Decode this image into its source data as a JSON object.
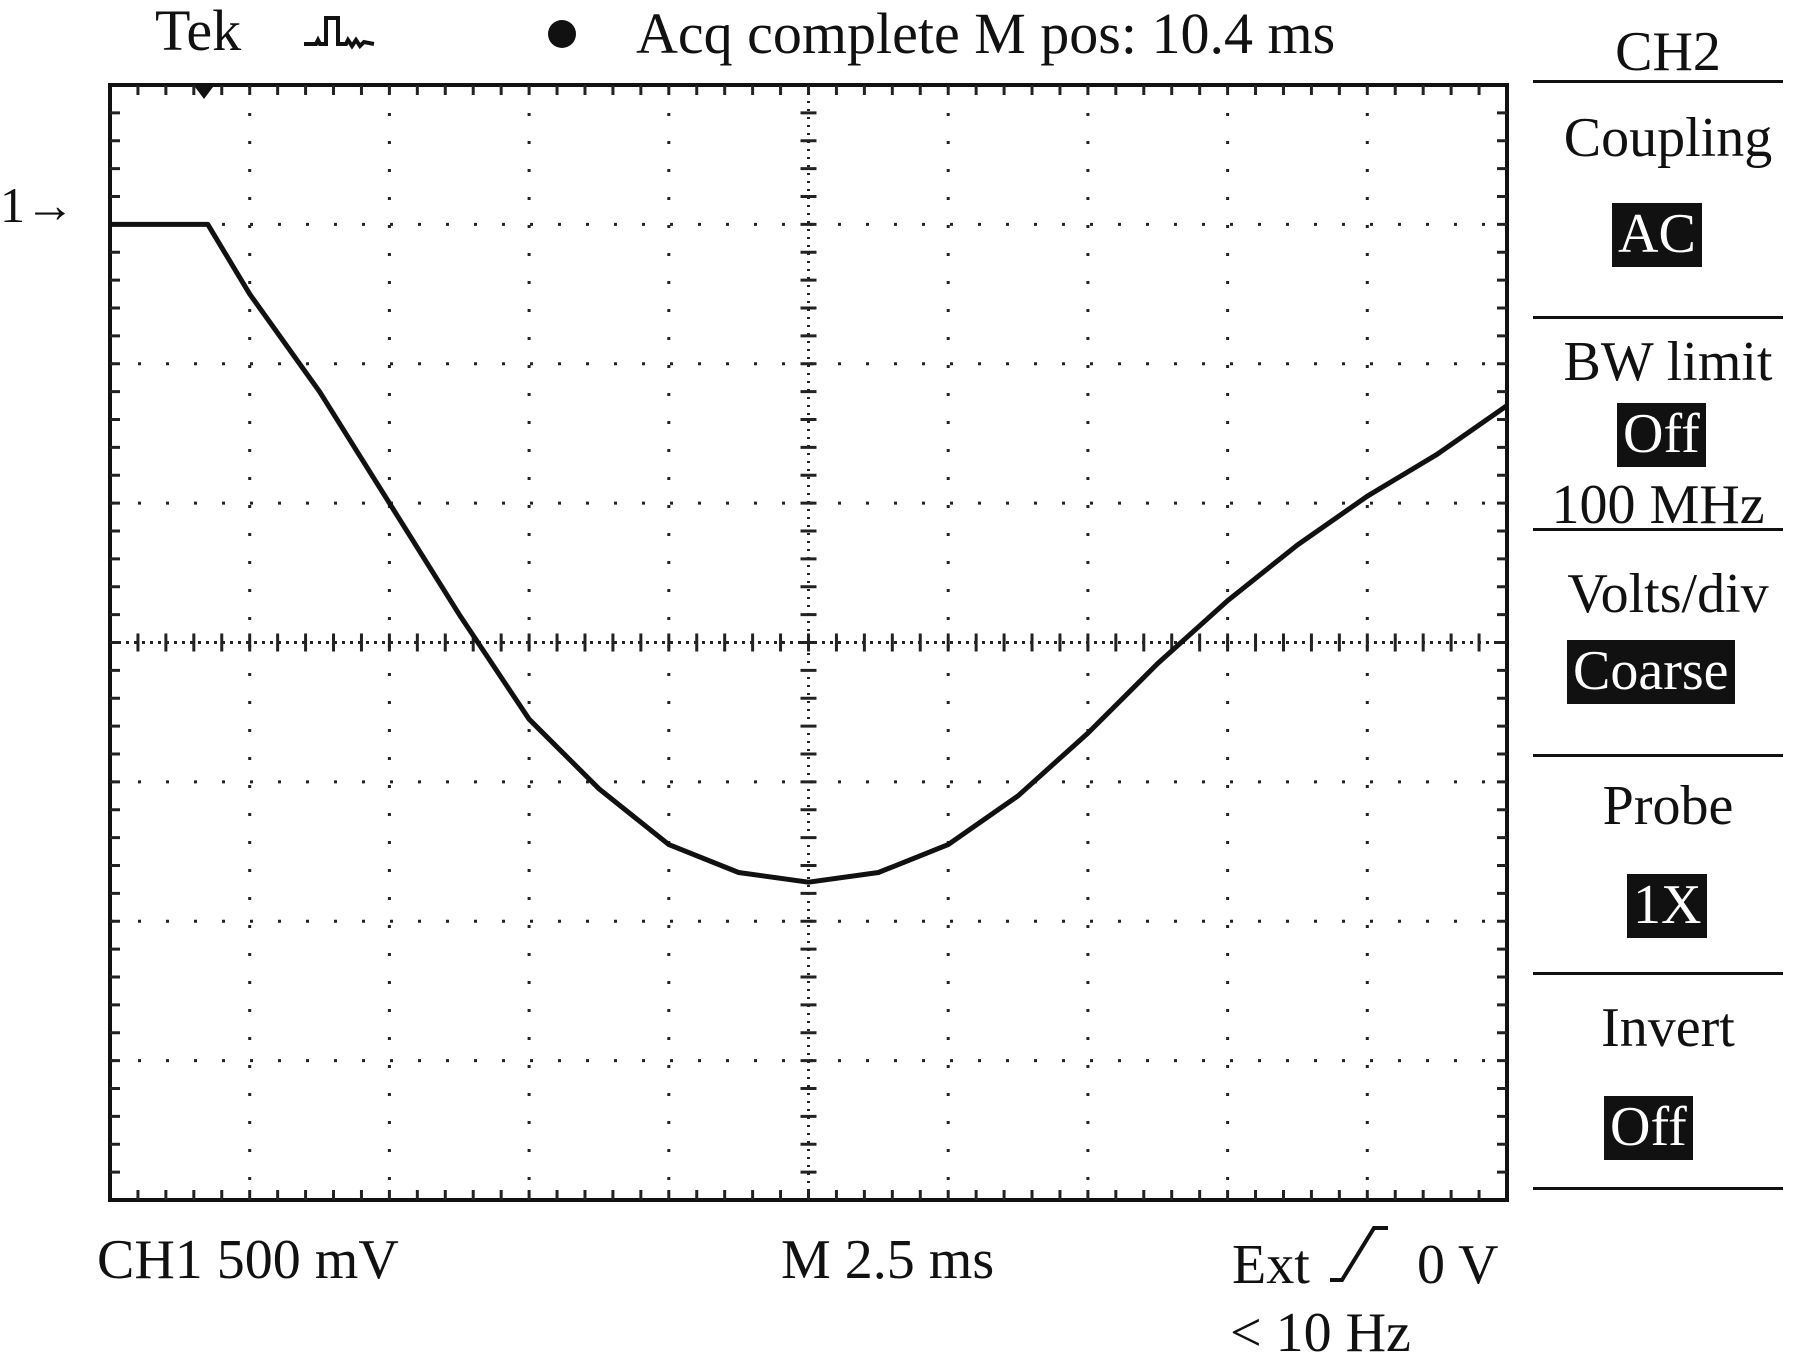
{
  "header": {
    "brand": "Tek",
    "trigger_icon": "pulse-icon",
    "status_dot_icon": "status-dot-icon",
    "status": "Acq complete M pos: 10.4 ms"
  },
  "marker": {
    "channel_ref": "1→"
  },
  "footer": {
    "ch1_scale": "CH1 500 mV",
    "time_scale": "M 2.5 ms",
    "trigger_source": "Ext",
    "trigger_slope_icon": "rising-edge-icon",
    "trigger_level": "0 V",
    "trigger_freq": "< 10 Hz"
  },
  "menu": {
    "title": "CH2",
    "items": [
      {
        "label": "Coupling",
        "value": "AC"
      },
      {
        "label": "BW limit",
        "value": "Off",
        "sub": "100 MHz"
      },
      {
        "label": "Volts/div",
        "value": "Coarse"
      },
      {
        "label": "Probe",
        "value": "1X"
      },
      {
        "label": "Invert",
        "value": "Off"
      }
    ]
  },
  "chart_data": {
    "type": "line",
    "grid": true,
    "xlabel": "",
    "ylabel": "",
    "xlim": [
      0,
      10
    ],
    "ylim": [
      -4,
      4
    ],
    "series": [
      {
        "x": [
          0.0,
          0.7,
          1.0,
          1.5,
          2.0,
          2.5,
          3.0,
          3.5,
          4.0,
          4.5,
          5.0,
          5.5,
          6.0,
          6.5,
          7.0,
          7.5,
          8.0,
          8.5,
          9.0,
          9.5,
          10.0
        ],
        "y": [
          3.0,
          3.0,
          2.5,
          1.8,
          1.0,
          0.2,
          -0.55,
          -1.05,
          -1.45,
          -1.65,
          -1.72,
          -1.65,
          -1.45,
          -1.1,
          -0.65,
          -0.15,
          0.3,
          0.7,
          1.05,
          1.35,
          1.7
        ]
      }
    ]
  }
}
